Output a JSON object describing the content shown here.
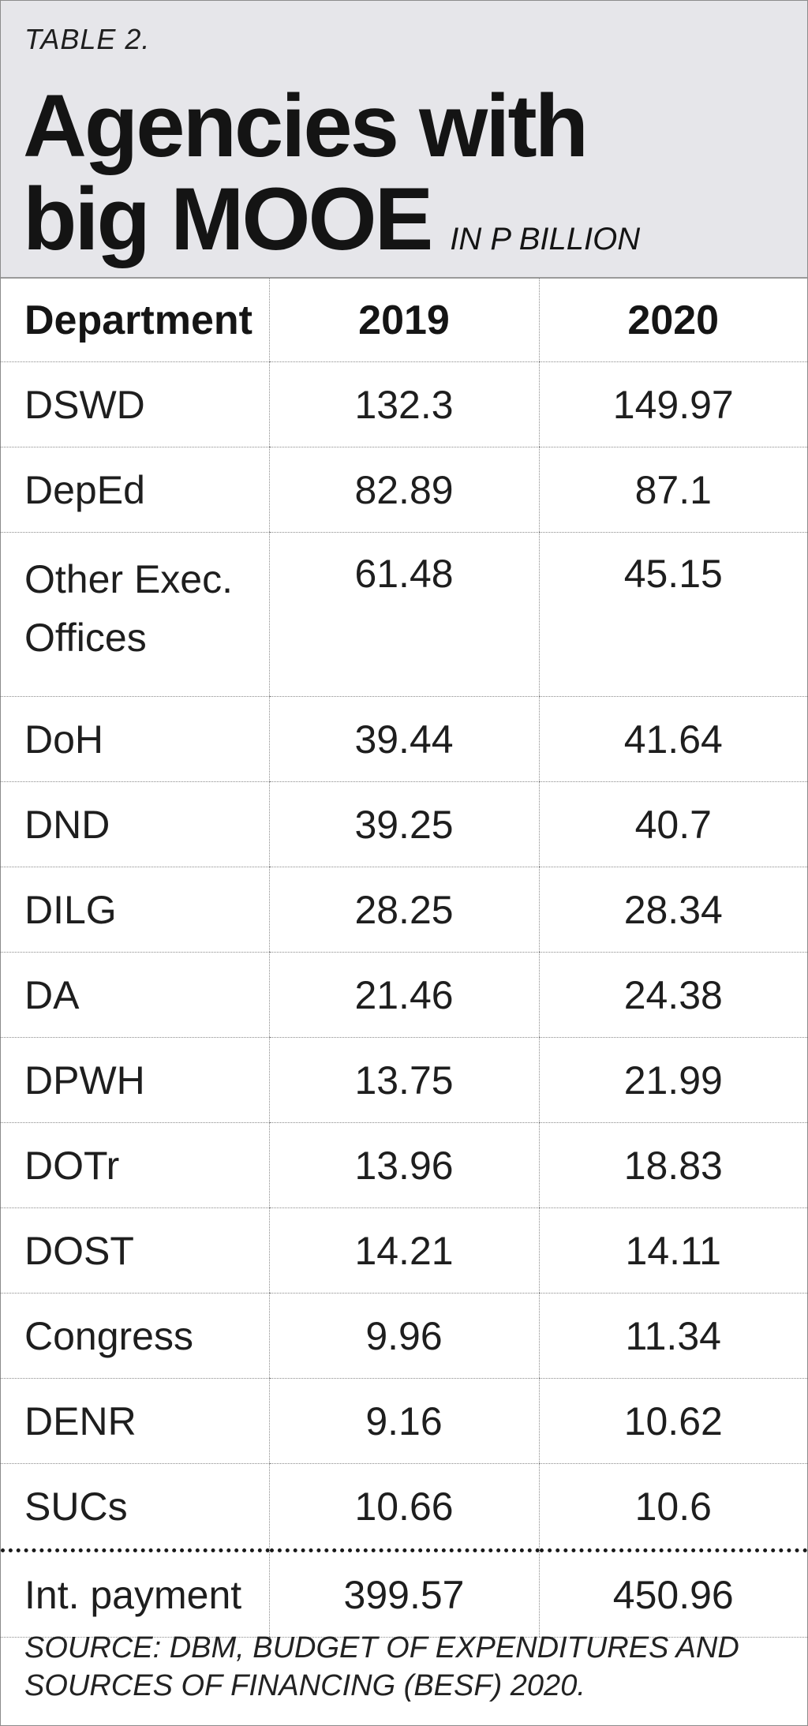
{
  "header": {
    "label": "TABLE 2.",
    "title_line1": "Agencies with",
    "title_line2": "big MOOE",
    "unit": "IN P BILLION"
  },
  "table": {
    "columns": [
      "Department",
      "2019",
      "2020"
    ],
    "rows": [
      {
        "department": "DSWD",
        "y2019": "132.3",
        "y2020": "149.97"
      },
      {
        "department": "DepEd",
        "y2019": "82.89",
        "y2020": "87.1"
      },
      {
        "department": "Other Exec. Offices",
        "department_line1": "Other Exec.",
        "department_line2": "Offices",
        "y2019": "61.48",
        "y2020": "45.15"
      },
      {
        "department": "DoH",
        "y2019": "39.44",
        "y2020": "41.64"
      },
      {
        "department": "DND",
        "y2019": "39.25",
        "y2020": "40.7"
      },
      {
        "department": "DILG",
        "y2019": "28.25",
        "y2020": "28.34"
      },
      {
        "department": "DA",
        "y2019": "21.46",
        "y2020": "24.38"
      },
      {
        "department": "DPWH",
        "y2019": "13.75",
        "y2020": "21.99"
      },
      {
        "department": "DOTr",
        "y2019": "13.96",
        "y2020": "18.83"
      },
      {
        "department": "DOST",
        "y2019": "14.21",
        "y2020": "14.11"
      },
      {
        "department": "Congress",
        "y2019": "9.96",
        "y2020": "11.34"
      },
      {
        "department": "DENR",
        "y2019": "9.16",
        "y2020": "10.62"
      },
      {
        "department": "SUCs",
        "y2019": "10.66",
        "y2020": "10.6"
      },
      {
        "department": "Int. payment",
        "y2019": "399.57",
        "y2020": "450.96"
      }
    ]
  },
  "source": {
    "line1": "SOURCE: DBM, BUDGET OF EXPENDITURES AND",
    "line2": "SOURCES OF FINANCING (BESF) 2020."
  },
  "colors": {
    "header_bg": "#e6e6ea",
    "text": "#1a1a1a"
  }
}
